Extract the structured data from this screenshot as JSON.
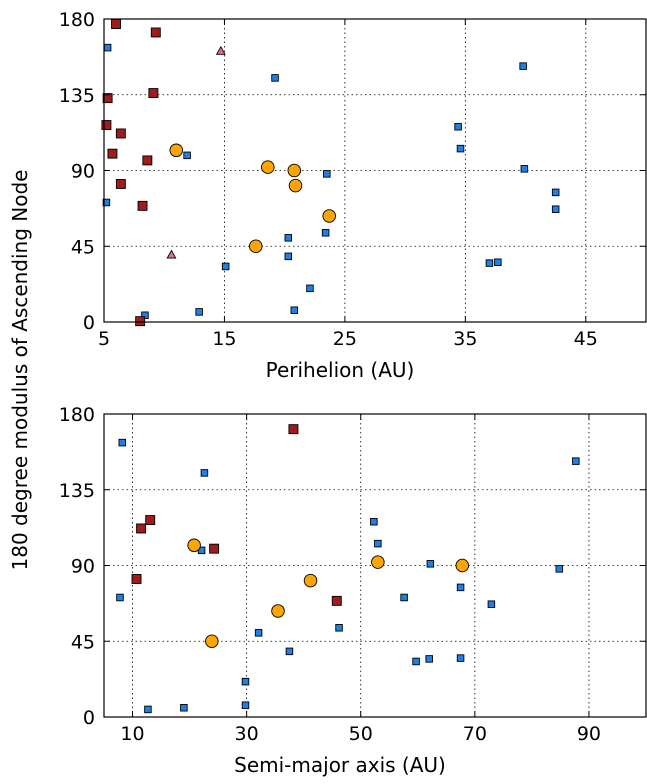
{
  "figure": {
    "ylabel": "180 degree modulus of Ascending Node"
  },
  "colors": {
    "square_blue": "#1f7fe6",
    "square_red": "#9e1c1c",
    "circle_orange": "#ffa500",
    "triangle_pink": "#e86a97"
  },
  "chart_data": [
    {
      "type": "scatter",
      "xlabel": "Perihelion (AU)",
      "ylabel": "180 degree modulus of Ascending Node",
      "xlim": [
        5,
        50
      ],
      "ylim": [
        0,
        180
      ],
      "xticks": [
        5,
        15,
        25,
        35,
        45
      ],
      "yticks": [
        0,
        45,
        90,
        135,
        180
      ],
      "grid": true,
      "series": [
        {
          "marker": "square",
          "color": "#1f7fe6",
          "size": "small",
          "points": [
            [
              5.3,
              163
            ],
            [
              5.2,
              71
            ],
            [
              8.4,
              4
            ],
            [
              11.9,
              99
            ],
            [
              12.9,
              6
            ],
            [
              15.1,
              33
            ],
            [
              19.2,
              145
            ],
            [
              20.3,
              50
            ],
            [
              20.3,
              39
            ],
            [
              20.8,
              7
            ],
            [
              22.1,
              20
            ],
            [
              23.4,
              53
            ],
            [
              23.5,
              88
            ],
            [
              34.4,
              116
            ],
            [
              34.6,
              103
            ],
            [
              37.0,
              35
            ],
            [
              37.7,
              35.5
            ],
            [
              39.8,
              152
            ],
            [
              39.9,
              91
            ],
            [
              42.5,
              77
            ],
            [
              42.5,
              67
            ]
          ]
        },
        {
          "marker": "square",
          "color": "#9e1c1c",
          "size": "large",
          "points": [
            [
              6.0,
              177
            ],
            [
              9.3,
              172
            ],
            [
              5.3,
              133
            ],
            [
              9.1,
              136
            ],
            [
              5.2,
              117
            ],
            [
              6.4,
              112
            ],
            [
              5.7,
              100
            ],
            [
              8.6,
              96
            ],
            [
              6.4,
              82
            ],
            [
              8.2,
              69
            ],
            [
              8.0,
              0.5
            ]
          ]
        },
        {
          "marker": "circle",
          "color": "#ffa500",
          "size": "large",
          "points": [
            [
              11.0,
              102
            ],
            [
              18.6,
              92
            ],
            [
              20.8,
              90
            ],
            [
              20.9,
              81
            ],
            [
              23.7,
              63
            ],
            [
              17.6,
              45
            ]
          ]
        },
        {
          "marker": "triangle",
          "color": "#e86a97",
          "size": "small",
          "points": [
            [
              14.7,
              161
            ],
            [
              10.6,
              40
            ]
          ]
        }
      ]
    },
    {
      "type": "scatter",
      "xlabel": "Semi-major axis (AU)",
      "ylabel": "180 degree modulus of Ascending Node",
      "xlim": [
        5,
        100
      ],
      "ylim": [
        0,
        180
      ],
      "xticks": [
        10,
        30,
        50,
        70,
        90
      ],
      "yticks": [
        0,
        45,
        90,
        135,
        180
      ],
      "grid": true,
      "series": [
        {
          "marker": "square",
          "color": "#1f7fe6",
          "size": "small",
          "points": [
            [
              8.2,
              163
            ],
            [
              7.8,
              71
            ],
            [
              12.7,
              4.5
            ],
            [
              19.0,
              5.5
            ],
            [
              22.6,
              145
            ],
            [
              22.1,
              99
            ],
            [
              29.8,
              21
            ],
            [
              29.8,
              7
            ],
            [
              32.1,
              50
            ],
            [
              37.5,
              39
            ],
            [
              46.2,
              53
            ],
            [
              52.3,
              116
            ],
            [
              53.0,
              103
            ],
            [
              57.6,
              71
            ],
            [
              59.7,
              33
            ],
            [
              62.2,
              91
            ],
            [
              62.0,
              34.5
            ],
            [
              67.5,
              77
            ],
            [
              67.5,
              35
            ],
            [
              72.9,
              67
            ],
            [
              84.8,
              88
            ],
            [
              87.7,
              152
            ]
          ]
        },
        {
          "marker": "square",
          "color": "#9e1c1c",
          "size": "large",
          "points": [
            [
              38.2,
              171
            ],
            [
              13.1,
              117
            ],
            [
              11.5,
              112
            ],
            [
              24.3,
              100
            ],
            [
              10.7,
              82
            ],
            [
              45.8,
              69
            ]
          ]
        },
        {
          "marker": "circle",
          "color": "#ffa500",
          "size": "large",
          "points": [
            [
              20.8,
              102
            ],
            [
              53.0,
              92
            ],
            [
              67.8,
              90
            ],
            [
              41.2,
              81
            ],
            [
              35.5,
              63
            ],
            [
              23.9,
              45
            ]
          ]
        }
      ]
    }
  ]
}
